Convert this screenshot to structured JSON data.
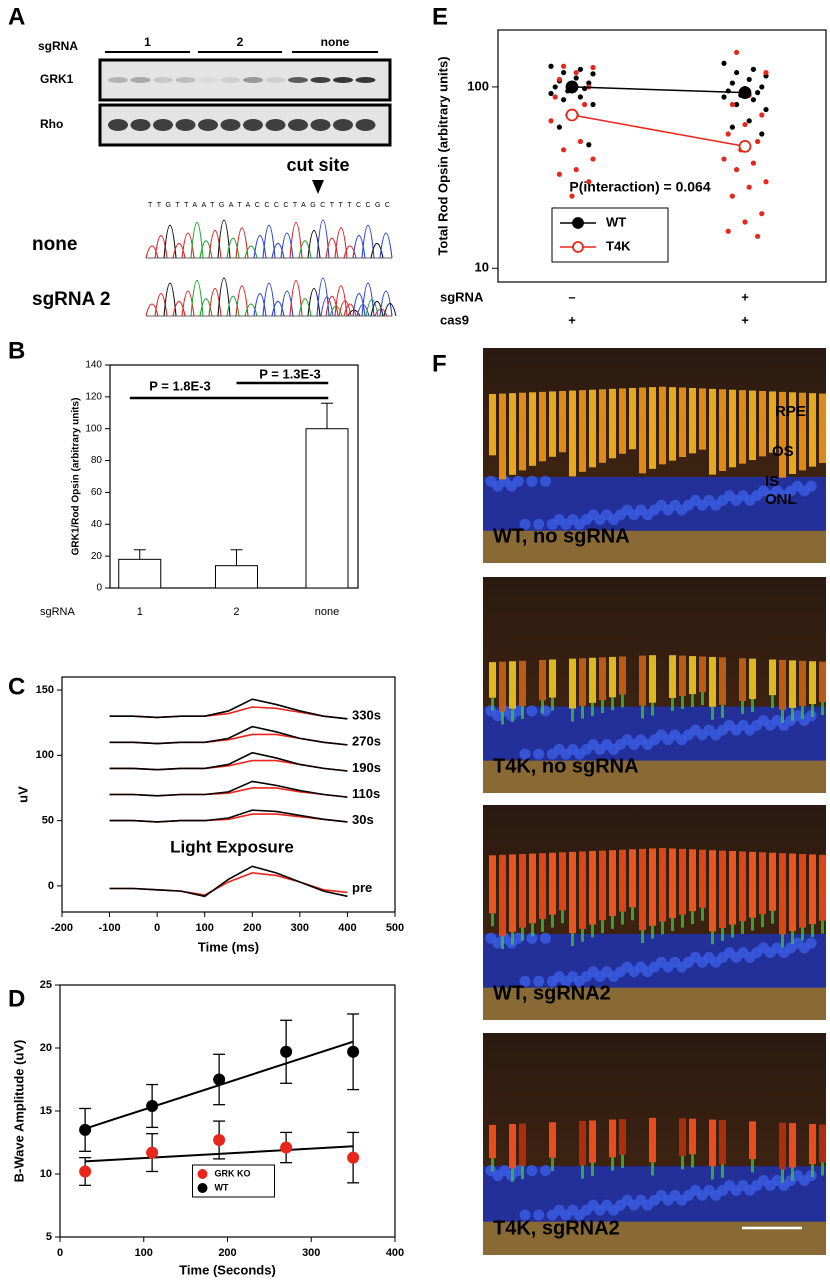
{
  "panel_labels": [
    "A",
    "B",
    "C",
    "D",
    "E",
    "F"
  ],
  "blot": {
    "row_label": "sgRNA",
    "groups": [
      "1",
      "2",
      "none"
    ],
    "bands": [
      "GRK1",
      "Rho"
    ],
    "cut_site": "cut site",
    "sequence": "TTGTTAATGATACCCCTAGCTTTCCGC",
    "traces": [
      "none",
      "sgRNA 2"
    ]
  },
  "chart_data": [
    {
      "type": "bar",
      "ylabel": "GRK1/Rod Opsin (arbitrary units)",
      "xlabel": "sgRNA",
      "categories": [
        "1",
        "2",
        "none"
      ],
      "values": [
        18,
        14,
        100
      ],
      "errors": [
        6,
        10,
        16
      ],
      "color": "#ffffff",
      "ylim": [
        0,
        140
      ],
      "yticks": [
        0,
        20,
        40,
        60,
        80,
        100,
        120,
        140
      ],
      "annotations": [
        "P = 1.8E-3",
        "P = 1.3E-3"
      ]
    },
    {
      "type": "line",
      "xlabel": "Time (ms)",
      "ylabel": "uV",
      "annotation": "Light Exposure",
      "x": [
        -100,
        -50,
        0,
        50,
        100,
        150,
        200,
        250,
        300,
        350,
        400
      ],
      "traces": [
        {
          "label": "330s",
          "series": [
            {
              "color": "#000000",
              "values": [
                130,
                130,
                129,
                130,
                130,
                134,
                143,
                139,
                134,
                130,
                128
              ]
            },
            {
              "color": "#e8261c",
              "values": [
                130,
                130,
                129,
                130,
                130,
                132,
                137,
                136,
                133,
                130,
                128
              ]
            }
          ]
        },
        {
          "label": "270s",
          "series": [
            {
              "color": "#000000",
              "values": [
                110,
                110,
                109,
                110,
                110,
                113,
                122,
                118,
                113,
                110,
                108
              ]
            },
            {
              "color": "#e8261c",
              "values": [
                110,
                110,
                109,
                110,
                110,
                112,
                116,
                116,
                113,
                110,
                108
              ]
            }
          ]
        },
        {
          "label": "190s",
          "series": [
            {
              "color": "#000000",
              "values": [
                90,
                90,
                89,
                90,
                90,
                93,
                102,
                98,
                93,
                90,
                88
              ]
            },
            {
              "color": "#e8261c",
              "values": [
                90,
                90,
                89,
                90,
                90,
                92,
                96,
                96,
                93,
                90,
                88
              ]
            }
          ]
        },
        {
          "label": "110s",
          "series": [
            {
              "color": "#000000",
              "values": [
                70,
                70,
                69,
                70,
                70,
                72,
                80,
                77,
                73,
                70,
                68
              ]
            },
            {
              "color": "#e8261c",
              "values": [
                70,
                70,
                69,
                70,
                70,
                71,
                75,
                75,
                72,
                70,
                68
              ]
            }
          ]
        },
        {
          "label": "30s",
          "series": [
            {
              "color": "#000000",
              "values": [
                50,
                50,
                49,
                50,
                50,
                52,
                58,
                57,
                54,
                51,
                49
              ]
            },
            {
              "color": "#e8261c",
              "values": [
                50,
                50,
                49,
                50,
                50,
                51,
                55,
                55,
                53,
                51,
                49
              ]
            }
          ]
        },
        {
          "label": "pre",
          "series": [
            {
              "color": "#000000",
              "values": [
                -2,
                -2,
                -3,
                -4,
                -8,
                5,
                15,
                10,
                3,
                -4,
                -8
              ]
            },
            {
              "color": "#e8261c",
              "values": [
                -2,
                -2,
                -3,
                -4,
                -7,
                3,
                10,
                8,
                3,
                -3,
                -5
              ]
            }
          ]
        }
      ],
      "xlim": [
        -200,
        500
      ],
      "xticks": [
        -200,
        -100,
        0,
        100,
        200,
        300,
        400,
        500
      ],
      "ylim": [
        -20,
        160
      ],
      "yticks": [
        0,
        50,
        100,
        150
      ]
    },
    {
      "type": "scatter",
      "xlabel": "Time (Seconds)",
      "ylabel": "B-Wave Amplitude (uV)",
      "x": [
        30,
        110,
        190,
        270,
        350
      ],
      "series": [
        {
          "name": "GRK KO",
          "color": "#e8261c",
          "values": [
            10.2,
            11.7,
            12.7,
            12.1,
            11.3
          ],
          "errors": [
            1.1,
            1.5,
            1.5,
            1.2,
            2.0
          ],
          "fit": [
            11.0,
            12.2
          ]
        },
        {
          "name": "WT",
          "color": "#000000",
          "values": [
            13.5,
            15.4,
            17.5,
            19.7,
            19.7
          ],
          "errors": [
            1.7,
            1.7,
            2.0,
            2.5,
            3.0
          ],
          "fit": [
            13.6,
            20.5
          ]
        }
      ],
      "xlim": [
        0,
        400
      ],
      "xticks": [
        0,
        100,
        200,
        300,
        400
      ],
      "ylim": [
        5,
        25
      ],
      "yticks": [
        5,
        10,
        15,
        20,
        25
      ],
      "legend": "lower center"
    },
    {
      "type": "dot",
      "ylabel": "Total Rod Opsin (arbitrary units)",
      "log_scale": true,
      "annotation": "P(interaction) = 0.064",
      "rows": [
        {
          "name": "sgRNA",
          "values": [
            "–",
            "+"
          ]
        },
        {
          "name": "cas9",
          "values": [
            "+",
            "+"
          ]
        }
      ],
      "series": [
        {
          "name": "WT",
          "color": "#000000",
          "marker": "filled",
          "mean": [
            100,
            93
          ],
          "points": [
            [
              130,
              125,
              120,
              118,
              112,
              108,
              105,
              102,
              100,
              98,
              95,
              92,
              88,
              85,
              80,
              70,
              60,
              48
            ],
            [
              135,
              125,
              120,
              115,
              110,
              105,
              100,
              98,
              95,
              93,
              90,
              88,
              85,
              80,
              75,
              65,
              60,
              55
            ]
          ]
        },
        {
          "name": "T4K",
          "color": "#e8261c",
          "marker": "open",
          "mean": [
            70,
            47
          ],
          "points": [
            [
              130,
              128,
              120,
              110,
              100,
              95,
              88,
              80,
              70,
              65,
              50,
              45,
              40,
              35,
              33,
              30,
              25,
              21,
              20
            ],
            [
              155,
              120,
              90,
              80,
              70,
              62,
              55,
              50,
              45,
              40,
              38,
              35,
              30,
              28,
              25,
              20,
              18,
              16,
              15
            ]
          ]
        }
      ],
      "ylim": [
        8.4,
        206
      ],
      "yticks": [
        10,
        100
      ],
      "legend": "lower center"
    }
  ],
  "micrographs": {
    "panels": [
      "WT, no sgRNA",
      "T4K, no sgRNA",
      "WT, sgRNA2",
      "T4K, sgRNA2"
    ],
    "layers": [
      "RPE",
      "OS",
      "IS",
      "ONL"
    ]
  }
}
